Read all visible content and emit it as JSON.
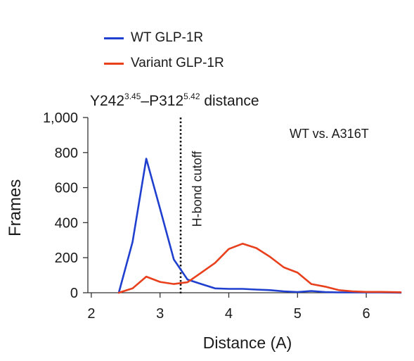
{
  "chart_data": {
    "type": "line",
    "title_parts": {
      "res1": "Y242",
      "res1_sup": "3.45",
      "dash": "–",
      "res2": "P312",
      "res2_sup": "5.42",
      "tail": " distance"
    },
    "xlabel": "Distance (A)",
    "ylabel": "Frames",
    "xlim": [
      1.95,
      6.5
    ],
    "ylim": [
      0,
      1000
    ],
    "xticks": [
      2,
      3,
      4,
      5,
      6
    ],
    "xtick_labels": [
      "2",
      "3",
      "4",
      "5",
      "6"
    ],
    "yticks": [
      0,
      200,
      400,
      600,
      800,
      1000
    ],
    "ytick_labels": [
      "0",
      "200",
      "400",
      "600",
      "800",
      "1,000"
    ],
    "legend_position": "top-left",
    "annotation": "WT vs. A316T",
    "cutoff": {
      "x": 3.3,
      "label": "H-bond cutoff"
    },
    "series": [
      {
        "name": "WT GLP-1R",
        "color": "#1f3fcf",
        "x": [
          2.4,
          2.6,
          2.8,
          3.0,
          3.2,
          3.4,
          3.6,
          3.8,
          4.0,
          4.2,
          4.4,
          4.6,
          4.8,
          5.0,
          5.2,
          5.4,
          5.6,
          5.8,
          6.0,
          6.2,
          6.5
        ],
        "y": [
          0,
          290,
          765,
          480,
          190,
          75,
          50,
          25,
          22,
          22,
          18,
          15,
          8,
          4,
          10,
          4,
          2,
          2,
          2,
          2,
          0
        ]
      },
      {
        "name": "Variant GLP-1R",
        "color": "#e8401c",
        "x": [
          2.4,
          2.6,
          2.8,
          3.0,
          3.2,
          3.4,
          3.6,
          3.8,
          4.0,
          4.2,
          4.4,
          4.6,
          4.8,
          5.0,
          5.2,
          5.4,
          5.6,
          5.8,
          6.0,
          6.2,
          6.5
        ],
        "y": [
          0,
          25,
          92,
          62,
          50,
          60,
          115,
          170,
          250,
          280,
          255,
          205,
          145,
          115,
          50,
          35,
          15,
          8,
          5,
          5,
          3
        ]
      }
    ]
  }
}
